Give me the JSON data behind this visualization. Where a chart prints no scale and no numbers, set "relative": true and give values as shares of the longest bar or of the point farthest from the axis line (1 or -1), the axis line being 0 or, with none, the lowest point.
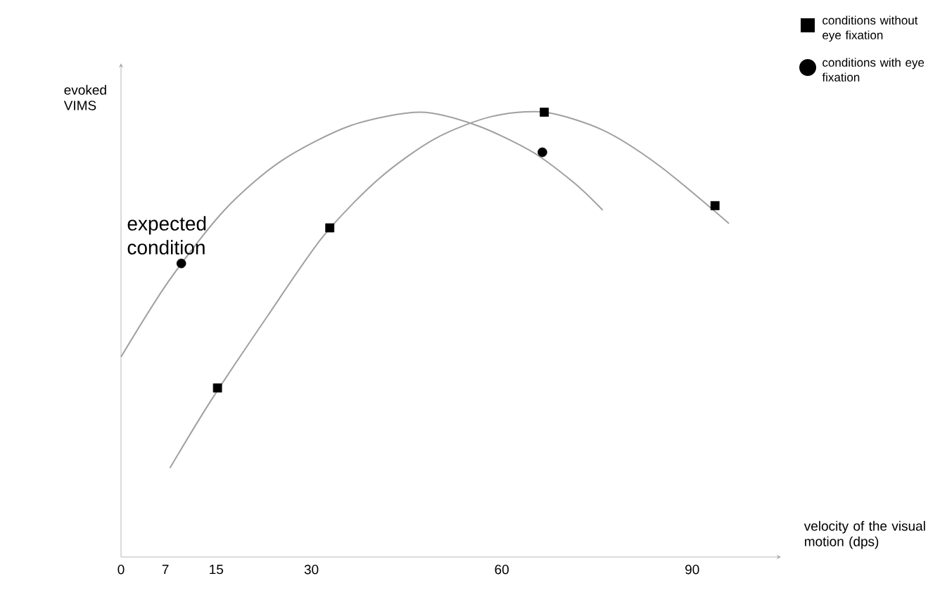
{
  "chart_data": {
    "type": "scatter",
    "relative": true,
    "xlabel": "velocity of the visual motion (dps)",
    "ylabel": "evoked VIMS",
    "xlim": [
      0,
      104
    ],
    "xticks": [
      0,
      7,
      15,
      30,
      60,
      90
    ],
    "legend": "top right",
    "grid": false,
    "annotations": [
      {
        "text": "expected condition",
        "x": 9.5,
        "y": 0.66
      }
    ],
    "series": [
      {
        "type": "line",
        "color": "#a0a0a0",
        "marker": "none",
        "x": [
          0,
          7.5,
          16.3,
          25.2,
          36.2,
          47.2,
          56.1,
          64.9,
          71.5,
          75.9
        ],
        "values": [
          0.45,
          0.62,
          0.78,
          0.89,
          0.97,
          1.0,
          0.97,
          0.91,
          0.84,
          0.78
        ]
      },
      {
        "type": "line",
        "color": "#a0a0a0",
        "marker": "none",
        "x": [
          7.7,
          14.1,
          23,
          31.8,
          40.6,
          49.4,
          58.3,
          66.7,
          75.9,
          84.8,
          95.8
        ],
        "values": [
          0.2,
          0.35,
          0.54,
          0.72,
          0.85,
          0.94,
          0.99,
          1.0,
          0.96,
          0.88,
          0.75
        ]
      },
      {
        "name": "conditions without eye fixation",
        "color": "#000000",
        "marker": "square",
        "x": [
          15.2,
          32.9,
          66.7,
          93.6
        ],
        "values": [
          0.38,
          0.74,
          1.0,
          0.79
        ]
      },
      {
        "name": "conditions with eye fixation",
        "color": "#000000",
        "marker": "circle",
        "x": [
          9.5,
          66.4
        ],
        "values": [
          0.66,
          0.91
        ]
      }
    ]
  }
}
